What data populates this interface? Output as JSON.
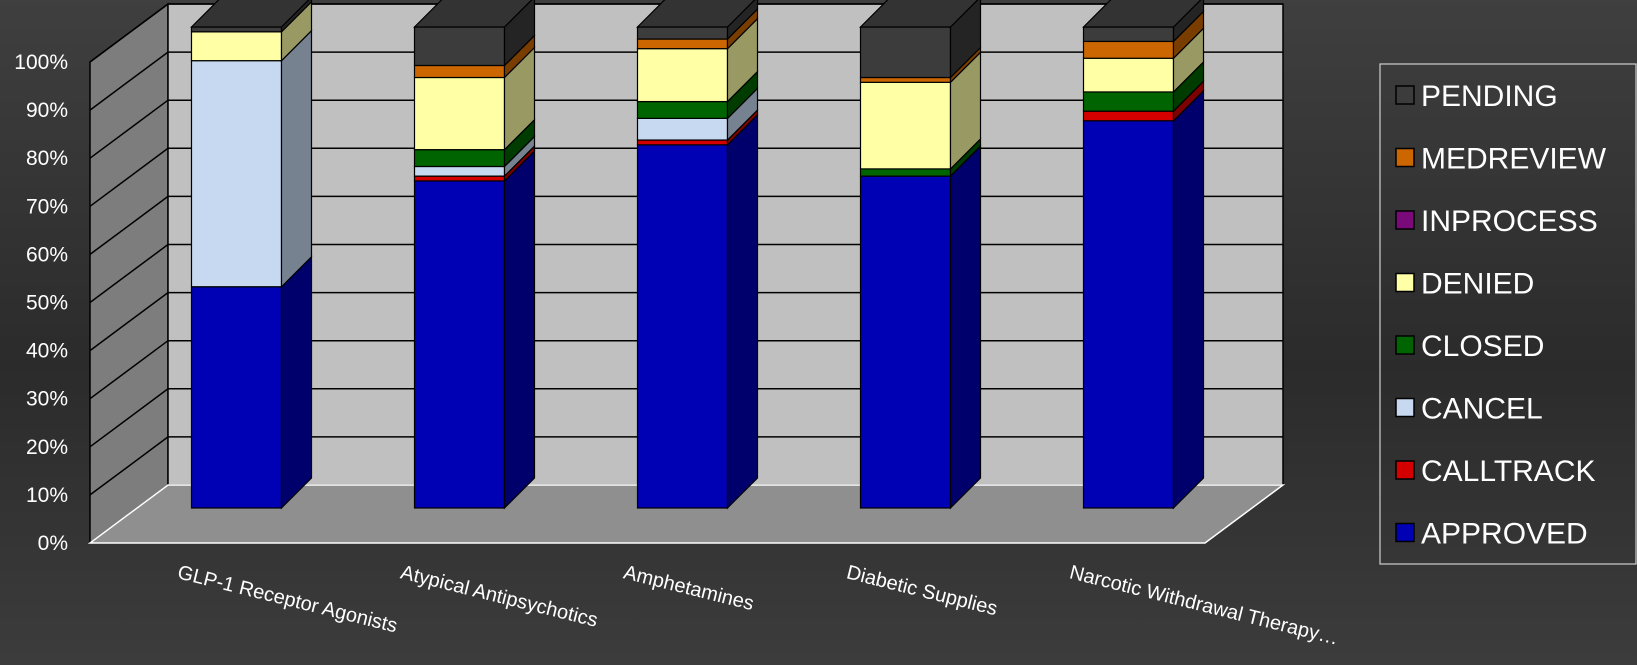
{
  "chart_data": {
    "type": "bar",
    "stacked": true,
    "percent": true,
    "three_d": true,
    "title": "",
    "xlabel": "",
    "ylabel": "",
    "ylim": [
      0,
      100
    ],
    "yticks": [
      "0%",
      "10%",
      "20%",
      "30%",
      "40%",
      "50%",
      "60%",
      "70%",
      "80%",
      "90%",
      "100%"
    ],
    "grid": true,
    "legend_position": "right",
    "categories": [
      "GLP-1 Receptor Agonists",
      "Atypical Antipsychotics",
      "Amphetamines",
      "Diabetic Supplies",
      "Narcotic Withdrawal Therapy…"
    ],
    "series": [
      {
        "name": "APPROVED",
        "color": "#0000b4",
        "values": [
          46,
          68,
          75.5,
          69,
          80.5
        ]
      },
      {
        "name": "CALLTRACK",
        "color": "#d40000",
        "values": [
          0,
          1,
          1,
          0,
          2
        ]
      },
      {
        "name": "CANCEL",
        "color": "#c6d9f1",
        "values": [
          47,
          2,
          4.5,
          0,
          0
        ]
      },
      {
        "name": "CLOSED",
        "color": "#006400",
        "values": [
          0,
          3.5,
          3.5,
          1.5,
          4
        ]
      },
      {
        "name": "DENIED",
        "color": "#ffffa6",
        "values": [
          6,
          15,
          11,
          18,
          7
        ]
      },
      {
        "name": "INPROCESS",
        "color": "#7a0a7a",
        "values": [
          0,
          0,
          0,
          0,
          0
        ]
      },
      {
        "name": "MEDREVIEW",
        "color": "#cc6600",
        "values": [
          0,
          2.5,
          2,
          1,
          3.5
        ]
      },
      {
        "name": "PENDING",
        "color": "#3c3c3c",
        "values": [
          1,
          8,
          2.5,
          10.5,
          3
        ]
      }
    ],
    "legend_order": [
      "PENDING",
      "MEDREVIEW",
      "INPROCESS",
      "DENIED",
      "CLOSED",
      "CANCEL",
      "CALLTRACK",
      "APPROVED"
    ]
  }
}
